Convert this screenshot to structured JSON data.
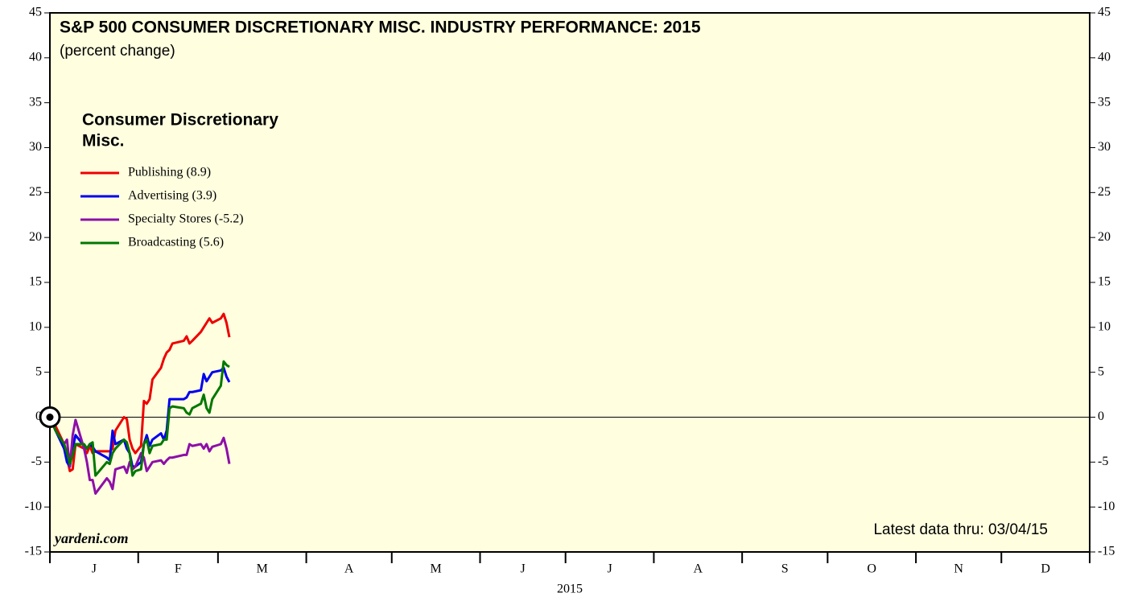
{
  "chart_data": {
    "type": "line",
    "title": "S&P 500 CONSUMER DISCRETIONARY MISC. INDUSTRY PERFORMANCE: 2015",
    "subtitle": "(percent change)",
    "legend_title": [
      "Consumer Discretionary",
      "Misc."
    ],
    "source": "yardeni.com",
    "note": "Latest data thru: 03/04/15",
    "x_label": "2015",
    "categories": [
      "J",
      "F",
      "M",
      "A",
      "M",
      "J",
      "J",
      "A",
      "S",
      "O",
      "N",
      "D"
    ],
    "xlim": [
      0,
      365
    ],
    "xticks": [
      0,
      31,
      59,
      90,
      120,
      151,
      181,
      212,
      243,
      273,
      304,
      334,
      365
    ],
    "ylim": [
      -15,
      45
    ],
    "yticks": [
      -15,
      -10,
      -5,
      0,
      5,
      10,
      15,
      20,
      25,
      30,
      35,
      40,
      45
    ],
    "x": [
      0,
      2,
      5,
      6,
      7,
      8,
      9,
      12,
      13,
      14,
      15,
      16,
      20,
      21,
      22,
      23,
      26,
      27,
      28,
      29,
      30,
      32,
      33,
      34,
      35,
      36,
      39,
      40,
      41,
      42,
      43,
      47,
      48,
      49,
      50,
      53,
      54,
      55,
      56,
      57,
      60,
      61,
      62,
      63
    ],
    "series": [
      {
        "name": "Publishing (8.9)",
        "color": "#ee0000",
        "values": [
          0,
          -1,
          -3,
          -4.5,
          -6,
          -5.8,
          -3,
          -3.5,
          -4,
          -3.2,
          -4,
          -3.8,
          -3.8,
          -3.8,
          -3.5,
          -1.5,
          0,
          -0.2,
          -2.5,
          -3.5,
          -4,
          -3.2,
          1.8,
          1.5,
          2,
          4.2,
          5.5,
          6.5,
          7.2,
          7.5,
          8.2,
          8.5,
          9,
          8.2,
          8.5,
          9.5,
          10,
          10.5,
          11,
          10.5,
          11,
          11.5,
          10.5,
          8.9
        ]
      },
      {
        "name": "Advertising (3.9)",
        "color": "#0000ee",
        "values": [
          0,
          -1.5,
          -3.5,
          -5,
          -5.5,
          -3.5,
          -2,
          -3.2,
          -3.5,
          -3,
          -3.3,
          -3.8,
          -4.5,
          -4.8,
          -1.5,
          -3,
          -2.5,
          -3.5,
          -4,
          -5.5,
          -5.5,
          -5,
          -3,
          -2,
          -3.2,
          -2.5,
          -1.8,
          -2.5,
          -1.5,
          2,
          2,
          2,
          2.2,
          2.8,
          2.8,
          3,
          4.8,
          4,
          4.5,
          5,
          5.2,
          5.5,
          4.5,
          3.9
        ]
      },
      {
        "name": "Specialty Stores (-5.2)",
        "color": "#8e0fa8",
        "values": [
          0,
          -1.5,
          -3,
          -2.5,
          -5.5,
          -2,
          -0.3,
          -3.5,
          -5,
          -7,
          -7,
          -8.5,
          -6.8,
          -7.2,
          -8,
          -5.8,
          -5.5,
          -6.2,
          -5,
          -5.8,
          -5.5,
          -4,
          -4.5,
          -6,
          -5.5,
          -5,
          -4.8,
          -5.2,
          -4.8,
          -4.5,
          -4.5,
          -4.2,
          -4.2,
          -3,
          -3.2,
          -3,
          -3.5,
          -3,
          -3.8,
          -3.3,
          -3,
          -2.3,
          -3.5,
          -5.2
        ]
      },
      {
        "name": "Broadcasting (5.6)",
        "color": "#007700",
        "values": [
          0,
          -1.5,
          -3,
          -4,
          -5.2,
          -4.2,
          -3,
          -3,
          -3.5,
          -3,
          -2.8,
          -6.5,
          -5,
          -5.2,
          -4,
          -3.5,
          -2.5,
          -2.8,
          -4,
          -6.5,
          -6,
          -5.8,
          -3,
          -2.5,
          -4,
          -3.2,
          -3,
          -2.5,
          -2.5,
          1,
          1.2,
          1,
          0.5,
          0.3,
          1,
          1.5,
          2.5,
          1,
          0.5,
          2,
          3.5,
          6.2,
          5.8,
          5.6
        ]
      }
    ]
  }
}
